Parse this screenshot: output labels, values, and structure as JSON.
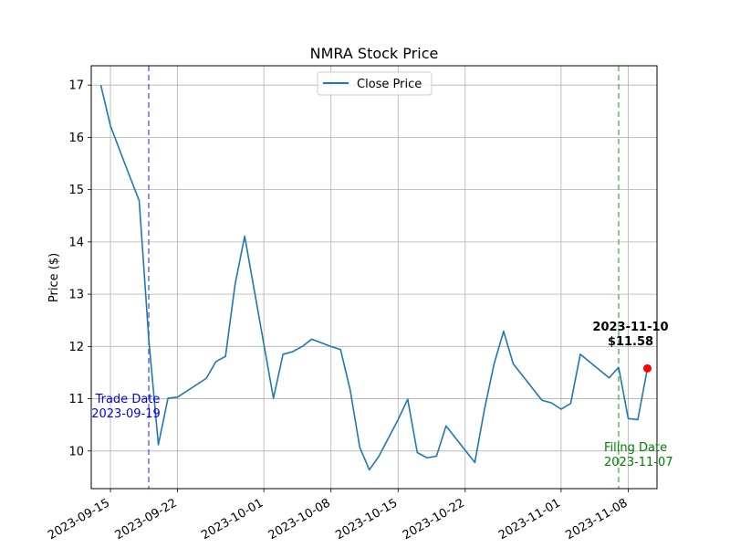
{
  "chart_data": {
    "type": "line",
    "title": "NMRA Stock Price",
    "xlabel": "",
    "ylabel": "Price ($)",
    "xlim": [
      "2023-09-13",
      "2023-11-11"
    ],
    "ylim": [
      9.28,
      17.37
    ],
    "grid": true,
    "legend_placement": "top-center",
    "x_ticks": [
      "2023-09-15",
      "2023-09-22",
      "2023-10-01",
      "2023-10-08",
      "2023-10-15",
      "2023-10-22",
      "2023-11-01",
      "2023-11-08"
    ],
    "y_ticks": [
      10,
      11,
      12,
      13,
      14,
      15,
      16,
      17
    ],
    "series": [
      {
        "name": "Close Price",
        "color": "#1f77b4",
        "x": [
          "2023-09-14",
          "2023-09-15",
          "2023-09-17",
          "2023-09-18",
          "2023-09-19",
          "2023-09-20",
          "2023-09-21",
          "2023-09-22",
          "2023-09-25",
          "2023-09-26",
          "2023-09-27",
          "2023-09-28",
          "2023-09-29",
          "2023-10-02",
          "2023-10-03",
          "2023-10-04",
          "2023-10-05",
          "2023-10-06",
          "2023-10-08",
          "2023-10-09",
          "2023-10-10",
          "2023-10-11",
          "2023-10-12",
          "2023-10-13",
          "2023-10-15",
          "2023-10-16",
          "2023-10-17",
          "2023-10-18",
          "2023-10-19",
          "2023-10-20",
          "2023-10-23",
          "2023-10-24",
          "2023-10-25",
          "2023-10-26",
          "2023-10-27",
          "2023-10-30",
          "2023-10-31",
          "2023-11-01",
          "2023-11-02",
          "2023-11-03",
          "2023-11-06",
          "2023-11-07",
          "2023-11-08",
          "2023-11-09",
          "2023-11-10"
        ],
        "y": [
          17.0,
          16.22,
          15.26,
          14.79,
          12.14,
          10.12,
          11.01,
          11.03,
          11.39,
          11.71,
          11.81,
          13.19,
          14.11,
          11.01,
          11.85,
          11.9,
          12.0,
          12.14,
          12.0,
          11.94,
          11.17,
          10.07,
          9.64,
          9.9,
          10.6,
          10.99,
          9.97,
          9.87,
          9.9,
          10.48,
          9.78,
          10.79,
          11.66,
          12.29,
          11.67,
          10.97,
          10.92,
          10.8,
          10.91,
          11.85,
          11.4,
          11.6,
          10.62,
          10.6,
          11.58
        ]
      }
    ],
    "highlight_point": {
      "x": "2023-11-10",
      "y": 11.58,
      "color": "#ff0000"
    },
    "annotations": [
      {
        "type": "vline",
        "x": "2023-09-19",
        "color": "#6a6adf",
        "label_line1": "Trade Date",
        "label_line2": "2023-09-19",
        "text_color": "#0000ff"
      },
      {
        "type": "vline",
        "x": "2023-11-07",
        "color": "#5fbf5f",
        "label_line1": "Filing Date",
        "label_line2": "2023-11-07",
        "text_color": "#008000"
      },
      {
        "type": "point_label",
        "x": "2023-11-10",
        "label_line1": "2023-11-10",
        "label_line2": "$11.58"
      }
    ]
  }
}
